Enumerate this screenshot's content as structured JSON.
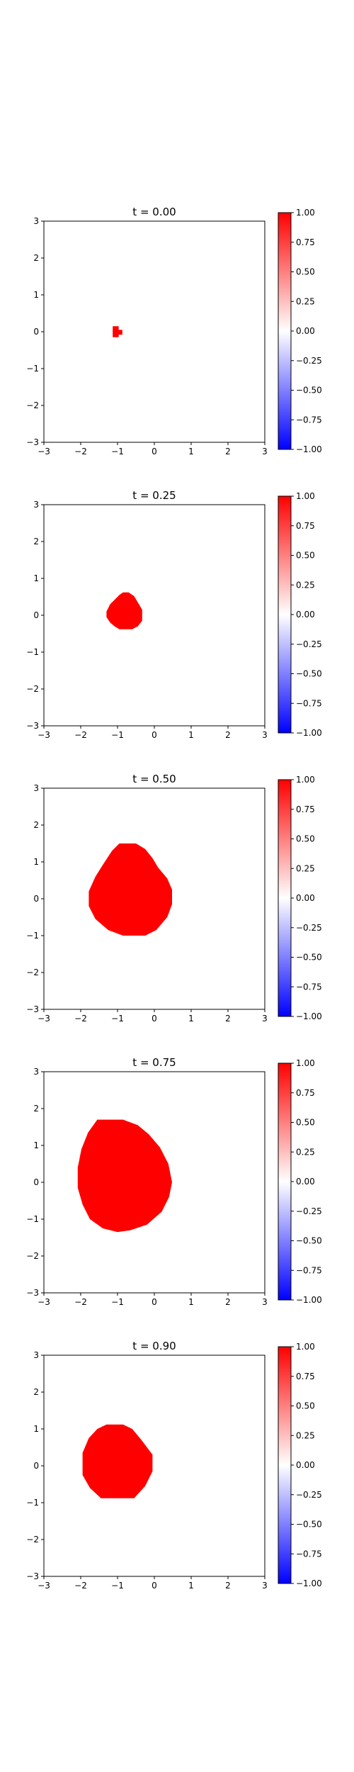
{
  "colors": {
    "background": "#ffffff",
    "blob": "#ff0000",
    "axis": "#000000",
    "colormap": [
      "#0000ff",
      "#ffffff",
      "#ff0000"
    ]
  },
  "chart_data": [
    {
      "type": "heatmap",
      "title": "t = 0.00",
      "xlim": [
        -3,
        3
      ],
      "ylim": [
        -3,
        3
      ],
      "xticks": [
        "−3",
        "−2",
        "−1",
        "0",
        "1",
        "2",
        "3"
      ],
      "yticks": [
        "−3",
        "−2",
        "−1",
        "0",
        "1",
        "2",
        "3"
      ],
      "grid": false,
      "colorbar": {
        "range": [
          -1,
          1
        ],
        "ticks": [
          "1.00",
          "0.75",
          "0.50",
          "0.25",
          "0.00",
          "−0.25",
          "−0.50",
          "−0.75",
          "−1.00"
        ],
        "colormap": "bwr"
      },
      "region_value": 1.0,
      "background_value": 0.0,
      "region_outline": [
        [
          -1.13,
          0.15
        ],
        [
          -0.97,
          0.15
        ],
        [
          -0.97,
          0.05
        ],
        [
          -0.87,
          0.05
        ],
        [
          -0.87,
          -0.08
        ],
        [
          -0.97,
          -0.08
        ],
        [
          -0.97,
          -0.15
        ],
        [
          -1.13,
          -0.15
        ]
      ]
    },
    {
      "type": "heatmap",
      "title": "t = 0.25",
      "xlim": [
        -3,
        3
      ],
      "ylim": [
        -3,
        3
      ],
      "xticks": [
        "−3",
        "−2",
        "−1",
        "0",
        "1",
        "2",
        "3"
      ],
      "yticks": [
        "−3",
        "−2",
        "−1",
        "0",
        "1",
        "2",
        "3"
      ],
      "grid": false,
      "colorbar": {
        "range": [
          -1,
          1
        ],
        "ticks": [
          "1.00",
          "0.75",
          "0.50",
          "0.25",
          "0.00",
          "−0.25",
          "−0.50",
          "−0.75",
          "−1.00"
        ],
        "colormap": "bwr"
      },
      "region_value": 1.0,
      "background_value": 0.0,
      "region_outline": [
        [
          -0.85,
          0.62
        ],
        [
          -0.7,
          0.62
        ],
        [
          -0.55,
          0.52
        ],
        [
          -0.45,
          0.35
        ],
        [
          -0.33,
          0.15
        ],
        [
          -0.33,
          -0.15
        ],
        [
          -0.45,
          -0.3
        ],
        [
          -0.6,
          -0.38
        ],
        [
          -0.95,
          -0.38
        ],
        [
          -1.08,
          -0.3
        ],
        [
          -1.2,
          -0.2
        ],
        [
          -1.3,
          -0.05
        ],
        [
          -1.3,
          0.1
        ],
        [
          -1.2,
          0.3
        ],
        [
          -1.05,
          0.45
        ],
        [
          -0.95,
          0.55
        ]
      ]
    },
    {
      "type": "heatmap",
      "title": "t = 0.50",
      "xlim": [
        -3,
        3
      ],
      "ylim": [
        -3,
        3
      ],
      "xticks": [
        "−3",
        "−2",
        "−1",
        "0",
        "1",
        "2",
        "3"
      ],
      "yticks": [
        "−3",
        "−2",
        "−1",
        "0",
        "1",
        "2",
        "3"
      ],
      "grid": false,
      "colorbar": {
        "range": [
          -1,
          1
        ],
        "ticks": [
          "1.00",
          "0.75",
          "0.50",
          "0.25",
          "0.00",
          "−0.25",
          "−0.50",
          "−0.75",
          "−1.00"
        ],
        "colormap": "bwr"
      },
      "region_value": 1.0,
      "background_value": 0.0,
      "region_outline": [
        [
          -0.95,
          1.5
        ],
        [
          -0.5,
          1.5
        ],
        [
          -0.25,
          1.35
        ],
        [
          -0.05,
          1.1
        ],
        [
          0.1,
          0.85
        ],
        [
          0.35,
          0.55
        ],
        [
          0.48,
          0.25
        ],
        [
          0.48,
          -0.15
        ],
        [
          0.35,
          -0.5
        ],
        [
          0.05,
          -0.85
        ],
        [
          -0.25,
          -1.0
        ],
        [
          -0.85,
          -1.0
        ],
        [
          -1.25,
          -0.85
        ],
        [
          -1.6,
          -0.55
        ],
        [
          -1.78,
          -0.2
        ],
        [
          -1.78,
          0.2
        ],
        [
          -1.6,
          0.6
        ],
        [
          -1.38,
          0.95
        ],
        [
          -1.15,
          1.3
        ]
      ]
    },
    {
      "type": "heatmap",
      "title": "t = 0.75",
      "xlim": [
        -3,
        3
      ],
      "ylim": [
        -3,
        3
      ],
      "xticks": [
        "−3",
        "−2",
        "−1",
        "0",
        "1",
        "2",
        "3"
      ],
      "yticks": [
        "−3",
        "−2",
        "−1",
        "0",
        "1",
        "2",
        "3"
      ],
      "grid": false,
      "colorbar": {
        "range": [
          -1,
          1
        ],
        "ticks": [
          "1.00",
          "0.75",
          "0.50",
          "0.25",
          "0.00",
          "−0.25",
          "−0.50",
          "−0.75",
          "−1.00"
        ],
        "colormap": "bwr"
      },
      "region_value": 1.0,
      "background_value": 0.0,
      "region_outline": [
        [
          -1.55,
          1.7
        ],
        [
          -0.85,
          1.7
        ],
        [
          -0.45,
          1.55
        ],
        [
          -0.15,
          1.3
        ],
        [
          0.15,
          0.95
        ],
        [
          0.38,
          0.5
        ],
        [
          0.48,
          0.0
        ],
        [
          0.4,
          -0.4
        ],
        [
          0.2,
          -0.8
        ],
        [
          -0.2,
          -1.15
        ],
        [
          -0.65,
          -1.3
        ],
        [
          -1.0,
          -1.35
        ],
        [
          -1.4,
          -1.25
        ],
        [
          -1.75,
          -1.0
        ],
        [
          -1.95,
          -0.6
        ],
        [
          -2.08,
          -0.15
        ],
        [
          -2.08,
          0.4
        ],
        [
          -1.98,
          0.9
        ],
        [
          -1.8,
          1.35
        ]
      ]
    },
    {
      "type": "heatmap",
      "title": "t = 0.90",
      "xlim": [
        -3,
        3
      ],
      "ylim": [
        -3,
        3
      ],
      "xticks": [
        "−3",
        "−2",
        "−1",
        "0",
        "1",
        "2",
        "3"
      ],
      "yticks": [
        "−3",
        "−2",
        "−1",
        "0",
        "1",
        "2",
        "3"
      ],
      "grid": false,
      "colorbar": {
        "range": [
          -1,
          1
        ],
        "ticks": [
          "1.00",
          "0.75",
          "0.50",
          "0.25",
          "0.00",
          "−0.25",
          "−0.50",
          "−0.75",
          "−1.00"
        ],
        "colormap": "bwr"
      },
      "region_value": 1.0,
      "background_value": 0.0,
      "region_outline": [
        [
          -1.3,
          1.12
        ],
        [
          -0.85,
          1.12
        ],
        [
          -0.6,
          1.0
        ],
        [
          -0.35,
          0.7
        ],
        [
          -0.05,
          0.3
        ],
        [
          -0.05,
          -0.15
        ],
        [
          -0.25,
          -0.55
        ],
        [
          -0.55,
          -0.88
        ],
        [
          -1.45,
          -0.88
        ],
        [
          -1.75,
          -0.6
        ],
        [
          -1.95,
          -0.25
        ],
        [
          -1.95,
          0.35
        ],
        [
          -1.78,
          0.75
        ],
        [
          -1.55,
          1.0
        ]
      ]
    }
  ]
}
